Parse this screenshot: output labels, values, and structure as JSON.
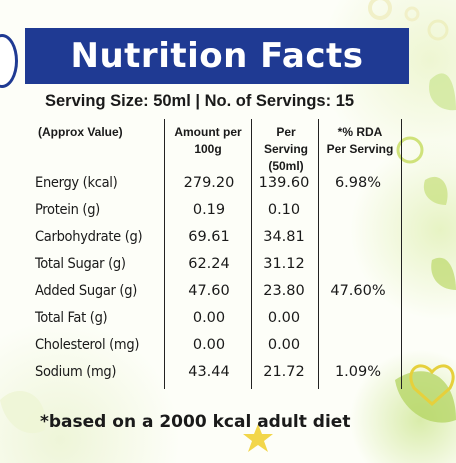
{
  "title": "Nutrition Facts",
  "serving_line": "Serving Size: 50ml  |  No. of Servings: 15",
  "columns": {
    "label": "(Approx Value)",
    "amount_line1": "Amount per",
    "amount_line2": "100g",
    "serving_line1": "Per Serving",
    "serving_line2": "(50ml)",
    "rda_line1": "*% RDA",
    "rda_line2": "Per Serving"
  },
  "rows": [
    {
      "label": "Energy (kcal)",
      "amount": "279.20",
      "serving": "139.60",
      "rda": "6.98%"
    },
    {
      "label": "Protein (g)",
      "amount": "0.19",
      "serving": "0.10",
      "rda": ""
    },
    {
      "label": "Carbohydrate (g)",
      "amount": "69.61",
      "serving": "34.81",
      "rda": ""
    },
    {
      "label": "Total Sugar (g)",
      "amount": "62.24",
      "serving": "31.12",
      "rda": ""
    },
    {
      "label": "Added Sugar (g)",
      "amount": "47.60",
      "serving": "23.80",
      "rda": "47.60%"
    },
    {
      "label": "Total Fat (g)",
      "amount": "0.00",
      "serving": "0.00",
      "rda": ""
    },
    {
      "label": "Cholesterol (mg)",
      "amount": "0.00",
      "serving": "0.00",
      "rda": ""
    },
    {
      "label": "Sodium (mg)",
      "amount": "43.44",
      "serving": "21.72",
      "rda": "1.09%"
    }
  ],
  "footnote": "*based on a 2000 kcal adult diet",
  "colors": {
    "title_bar": "#1f3a93",
    "title_text": "#ffffff",
    "text": "#1a1a1a",
    "accent_green": "#c6e07a",
    "accent_yellow": "#f2d64a"
  },
  "decorations": [
    "heart-outline-icon",
    "star-icon",
    "circle-outline-icon",
    "leaf-icon"
  ]
}
